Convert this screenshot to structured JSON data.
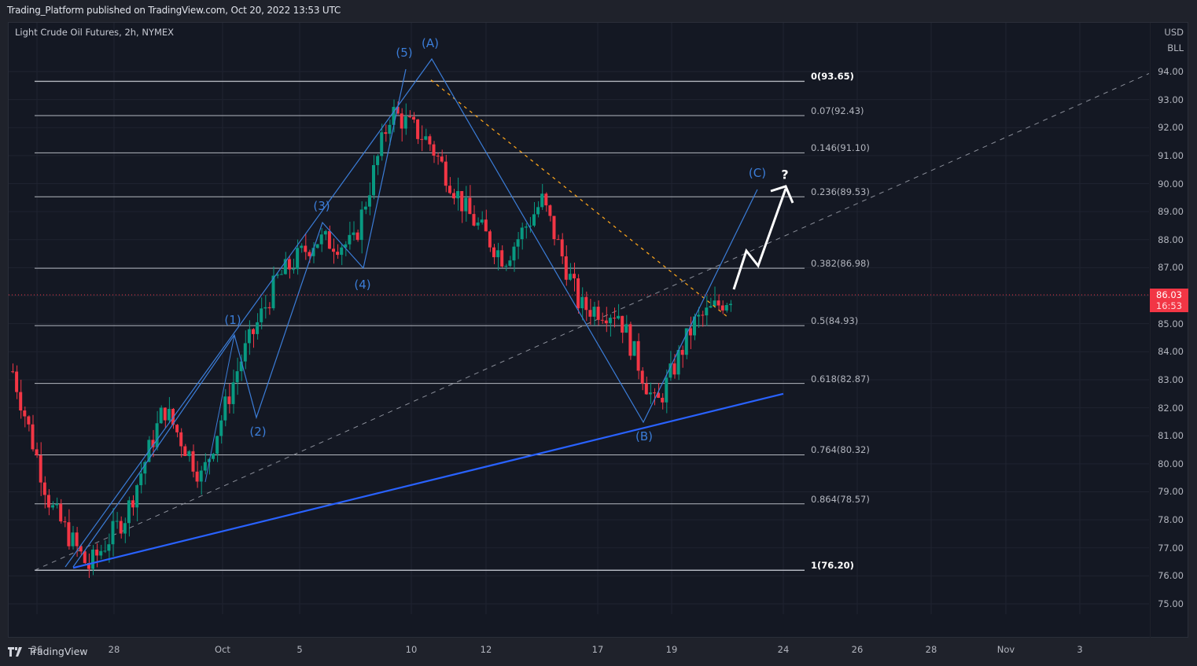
{
  "header": {
    "published": "Trading_Platform published on TradingView.com, Oct 20, 2022 13:53 UTC"
  },
  "chart": {
    "symbol": "Light Crude Oil Futures, 2h, NYMEX",
    "currency": "USD",
    "unit": "BLL",
    "current_price": "86.03",
    "countdown": "16:53",
    "footer_brand": "TradingView"
  },
  "colors": {
    "background": "#141823",
    "up": "#089981",
    "down": "#f23645",
    "wave": "#3b7dd8",
    "trendline": "#2962ff",
    "fib_line": "#d1d4dc",
    "orange_dash": "#f7a21b"
  },
  "chart_data": {
    "type": "candlestick",
    "title": "Light Crude Oil Futures, 2h, NYMEX",
    "xlabel": "",
    "ylabel": "USD / BLL",
    "ylim": [
      74.5,
      95.3
    ],
    "grid": true,
    "price_ticks": [
      "94.00",
      "93.00",
      "92.00",
      "91.00",
      "90.00",
      "89.00",
      "88.00",
      "87.00",
      "86.00",
      "85.00",
      "84.00",
      "83.00",
      "82.00",
      "81.00",
      "80.00",
      "79.00",
      "78.00",
      "77.00",
      "76.00",
      "75.00"
    ],
    "x_ticks": [
      "26",
      "28",
      "Oct",
      "5",
      "10",
      "12",
      "17",
      "19",
      "24",
      "26",
      "28",
      "Nov",
      "3"
    ],
    "fibonacci_levels": [
      {
        "label": "0(93.65)",
        "ratio": 0,
        "price": 93.65
      },
      {
        "label": "0.07(92.43)",
        "ratio": 0.07,
        "price": 92.43
      },
      {
        "label": "0.146(91.10)",
        "ratio": 0.146,
        "price": 91.1
      },
      {
        "label": "0.236(89.53)",
        "ratio": 0.236,
        "price": 89.53
      },
      {
        "label": "0.382(86.98)",
        "ratio": 0.382,
        "price": 86.98
      },
      {
        "label": "0.5(84.93)",
        "ratio": 0.5,
        "price": 84.93
      },
      {
        "label": "0.618(82.87)",
        "ratio": 0.618,
        "price": 82.87
      },
      {
        "label": "0.764(80.32)",
        "ratio": 0.764,
        "price": 80.32
      },
      {
        "label": "0.864(78.57)",
        "ratio": 0.864,
        "price": 78.57
      },
      {
        "label": "1(76.20)",
        "ratio": 1,
        "price": 76.2
      }
    ],
    "wave_labels": [
      "(1)",
      "(2)",
      "(3)",
      "(4)",
      "(5)",
      "(A)",
      "(B)",
      "(C)"
    ],
    "annotation": "?",
    "last_price": 86.03,
    "approx_path": [
      {
        "date": "Sep 25",
        "price": 83.3
      },
      {
        "date": "Sep 26",
        "price": 78.5
      },
      {
        "date": "Sep 27",
        "price": 76.3
      },
      {
        "date": "Sep 28",
        "price": 78.2
      },
      {
        "date": "Sep 29",
        "price": 82.0
      },
      {
        "date": "Sep 30",
        "price": 79.5
      },
      {
        "date": "Oct 3",
        "price": 83.6
      },
      {
        "date": "Oct 4",
        "price": 86.6
      },
      {
        "date": "Oct 5",
        "price": 88.0
      },
      {
        "date": "Oct 6",
        "price": 87.8
      },
      {
        "date": "Oct 7",
        "price": 92.6
      },
      {
        "date": "Oct 10",
        "price": 91.5
      },
      {
        "date": "Oct 11",
        "price": 89.0
      },
      {
        "date": "Oct 12",
        "price": 87.3
      },
      {
        "date": "Oct 13",
        "price": 89.4
      },
      {
        "date": "Oct 14",
        "price": 85.6
      },
      {
        "date": "Oct 17",
        "price": 85.4
      },
      {
        "date": "Oct 18",
        "price": 82.0
      },
      {
        "date": "Oct 19",
        "price": 85.0
      },
      {
        "date": "Oct 20",
        "price": 86.03
      }
    ]
  }
}
